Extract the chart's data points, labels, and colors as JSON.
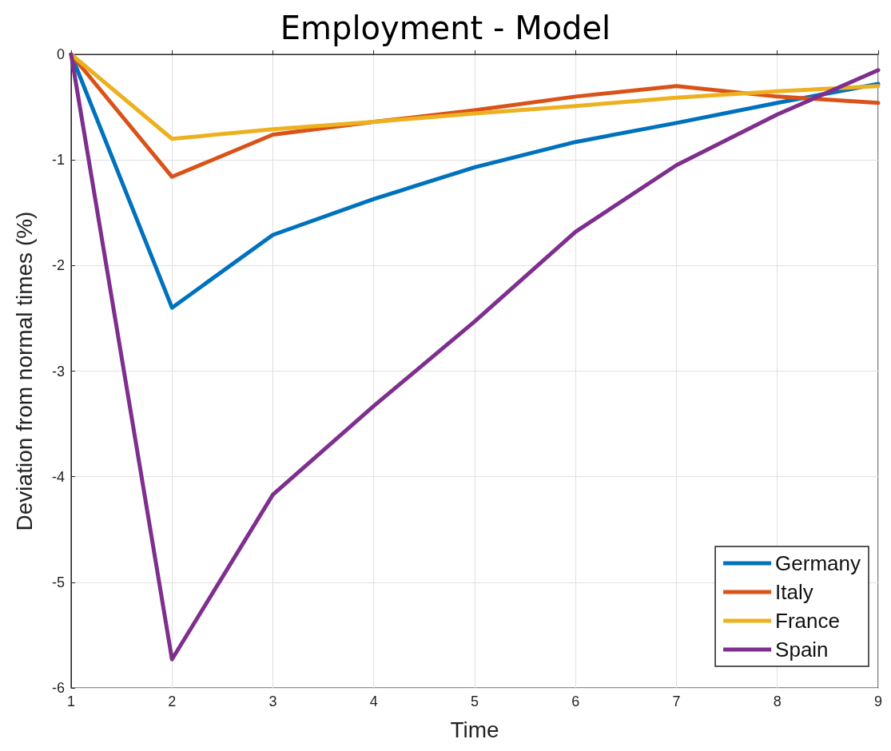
{
  "chart_data": {
    "type": "line",
    "title": "Employment - Model",
    "xlabel": "Time",
    "ylabel": "Deviation from normal times (%)",
    "x": [
      1,
      2,
      3,
      4,
      5,
      6,
      7,
      8,
      9
    ],
    "series": [
      {
        "name": "Germany",
        "color": "#0072bd",
        "values": [
          0,
          -2.4,
          -1.71,
          -1.37,
          -1.07,
          -0.83,
          -0.65,
          -0.46,
          -0.28
        ]
      },
      {
        "name": "Italy",
        "color": "#d95319",
        "values": [
          0,
          -1.16,
          -0.76,
          -0.64,
          -0.53,
          -0.4,
          -0.3,
          -0.4,
          -0.46
        ]
      },
      {
        "name": "France",
        "color": "#edb120",
        "values": [
          0,
          -0.8,
          -0.71,
          -0.64,
          -0.56,
          -0.49,
          -0.41,
          -0.35,
          -0.3
        ]
      },
      {
        "name": "Spain",
        "color": "#7e2f8e",
        "values": [
          0,
          -5.73,
          -4.17,
          -3.33,
          -2.53,
          -1.68,
          -1.05,
          -0.57,
          -0.15
        ]
      }
    ],
    "xlim": [
      1,
      9
    ],
    "xticks": [
      1,
      2,
      3,
      4,
      5,
      6,
      7,
      8,
      9
    ],
    "ylim": [
      -6,
      0
    ],
    "yticks": [
      -6,
      -5,
      -4,
      -3,
      -2,
      -1,
      0
    ],
    "grid": true,
    "legend": "bottom right",
    "marker": "none",
    "line_style": "solid"
  }
}
